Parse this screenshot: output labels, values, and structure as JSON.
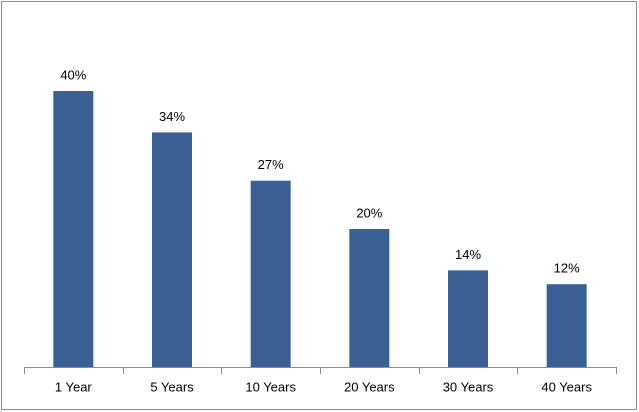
{
  "chart_data": {
    "type": "bar",
    "categories": [
      "1 Year",
      "5 Years",
      "10 Years",
      "20 Years",
      "30 Years",
      "40 Years"
    ],
    "values": [
      40,
      34,
      27,
      20,
      14,
      12
    ],
    "value_labels": [
      "40%",
      "34%",
      "27%",
      "20%",
      "14%",
      "12%"
    ],
    "color": "#3a5f93"
  }
}
